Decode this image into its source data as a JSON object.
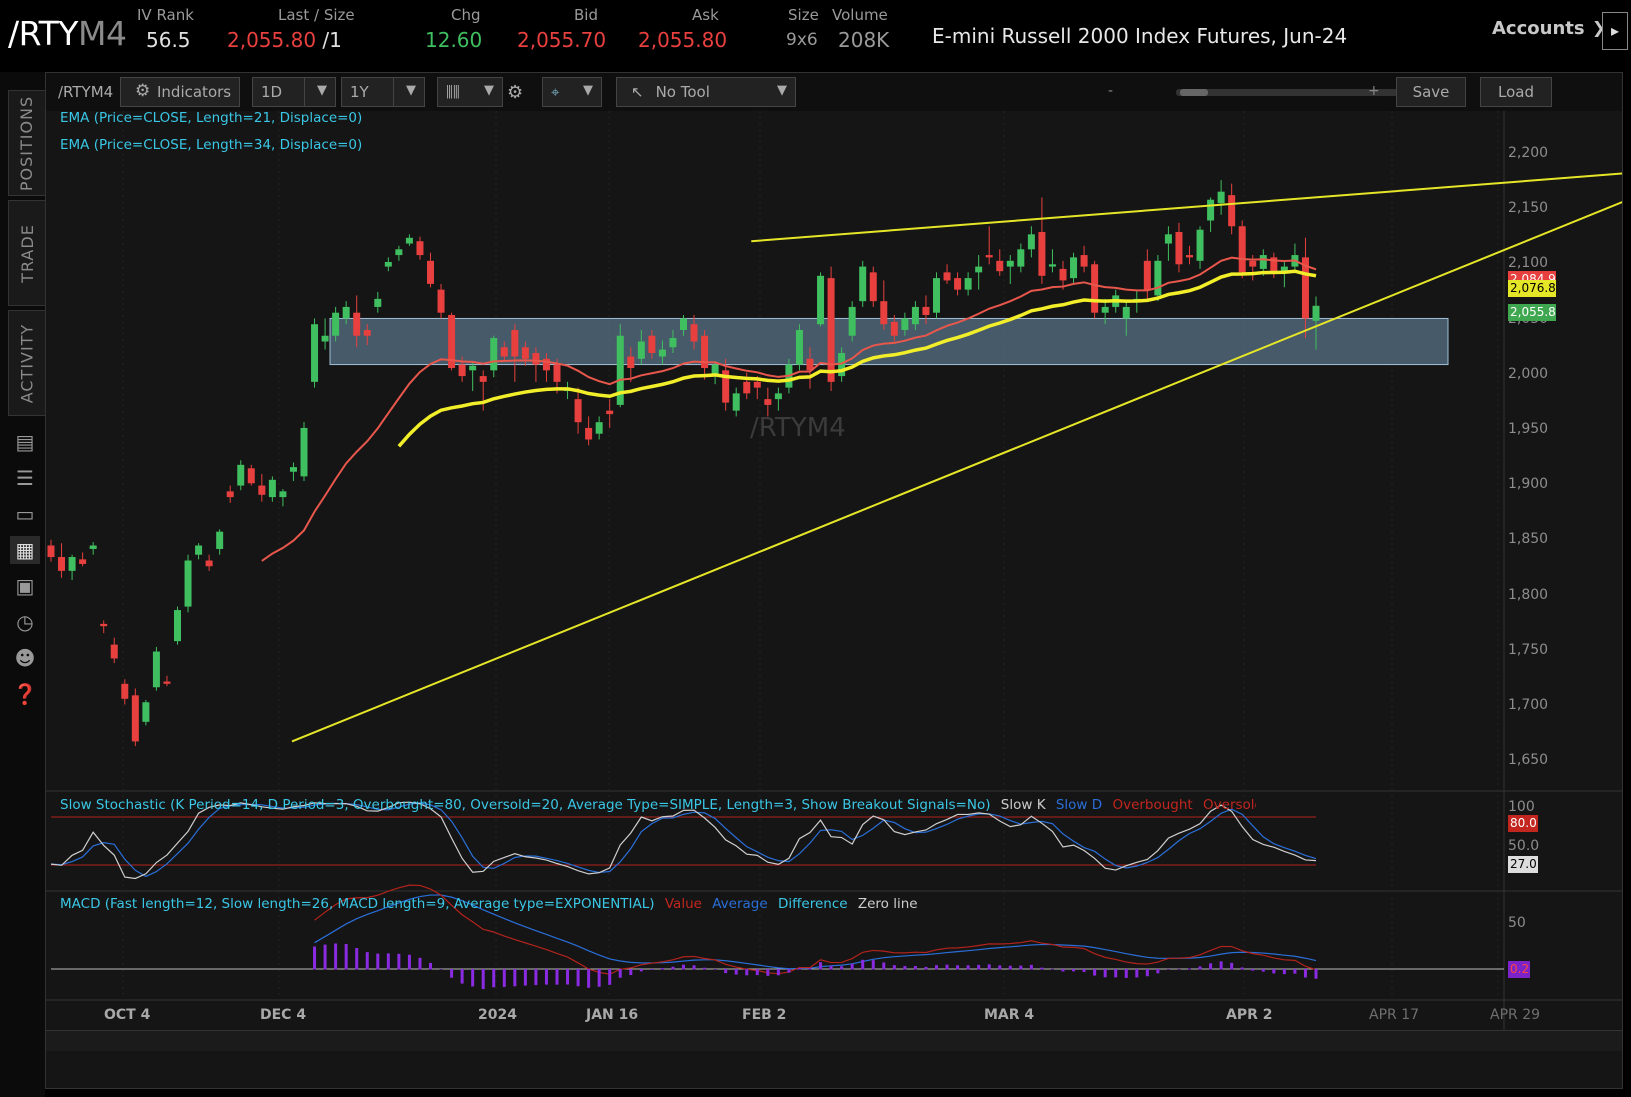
{
  "header": {
    "symbol_main": "/RTY",
    "symbol_suffix": "M4",
    "iv_rank_label": "IV Rank",
    "iv_rank_value": "56.5",
    "last_size_label": "Last / Size",
    "last_value": "2,055.80",
    "size_value": "/1",
    "chg_label": "Chg",
    "chg_value": "12.60",
    "bid_label": "Bid",
    "bid_value": "2,055.70",
    "ask_label": "Ask",
    "ask_value": "2,055.80",
    "size_label": "Size",
    "size_pair": "9x6",
    "volume_label": "Volume",
    "volume_value": "208K",
    "description": "E-mini Russell 2000 Index Futures, Jun-24",
    "accounts_label": "Accounts",
    "colors": {
      "up": "#3fbf5f",
      "down": "#e8403e"
    }
  },
  "sidebar": {
    "tabs": [
      "POSITIONS",
      "TRADE",
      "ACTIVITY"
    ],
    "icons": [
      "news-icon",
      "list-icon",
      "tv-icon",
      "chart-icon",
      "grid-icon",
      "clock-icon",
      "people-icon",
      "help-icon"
    ]
  },
  "toolbar": {
    "symbol": "/RTYM4",
    "indicators_label": "Indicators",
    "aggregation": "1D",
    "range": "1Y",
    "tool": "No Tool",
    "zoom_minus": "-",
    "zoom_plus": "+",
    "save_label": "Save",
    "load_label": "Load"
  },
  "chart_data": {
    "type": "candlestick",
    "watermark": "/RTYM4",
    "studies": {
      "ema21": "EMA (Price=CLOSE, Length=21, Displace=0)",
      "ema34": "EMA (Price=CLOSE, Length=34, Displace=0)",
      "stoch": "Slow Stochastic (K Period=14, D Period=3, Overbought=80, Oversold=20, Average Type=SIMPLE, Length=3, Show Breakout Signals=No)",
      "stoch_legend": [
        "Slow K",
        "Slow D",
        "Overbought",
        "Oversold"
      ],
      "macd": "MACD (Fast length=12, Slow length=26, MACD length=9, Average type=EXPONENTIAL)",
      "macd_legend": [
        "Value",
        "Average",
        "Difference",
        "Zero line"
      ]
    },
    "price_axis": [
      "2,200",
      "2,150",
      "2,100",
      "2,050",
      "2,000",
      "1,950",
      "1,900",
      "1,850",
      "1,800",
      "1,750",
      "1,700",
      "1,650"
    ],
    "ylim": [
      1635,
      2225
    ],
    "price_tags": {
      "ema21": "2,084.9",
      "ema34": "2,076.8",
      "last": "2,055.8"
    },
    "stoch_axis": [
      "100",
      "50.0"
    ],
    "stoch_tags": {
      "overbought": "80.0",
      "value": "27.0"
    },
    "stoch_levels": {
      "overbought": 80,
      "oversold": 20
    },
    "macd_axis": [
      "50"
    ],
    "macd_tags": {
      "value": "0.2"
    },
    "x_labels": [
      "OCT 4",
      "DEC 4",
      "2024",
      "JAN 16",
      "FEB 2",
      "MAR 4",
      "APR 2",
      "APR 17",
      "APR 29"
    ],
    "support_zone": [
      2005,
      2045
    ],
    "trendlines": [
      {
        "from": [
          "2023-10-27",
          1678
        ],
        "to": [
          "2024-04-29",
          2168
        ],
        "color": "#e6e628"
      },
      {
        "from": [
          "2023-12-27",
          2112
        ],
        "to": [
          "2024-04-29",
          2175
        ],
        "color": "#e6e628"
      }
    ],
    "candles": [
      [
        1848,
        1853,
        1834,
        1838
      ],
      [
        1838,
        1850,
        1820,
        1826
      ],
      [
        1826,
        1840,
        1818,
        1838
      ],
      [
        1836,
        1842,
        1830,
        1832
      ],
      [
        1845,
        1851,
        1840,
        1848
      ],
      [
        1780,
        1783,
        1772,
        1778
      ],
      [
        1762,
        1768,
        1746,
        1750
      ],
      [
        1728,
        1732,
        1710,
        1715
      ],
      [
        1718,
        1724,
        1674,
        1678
      ],
      [
        1695,
        1714,
        1692,
        1712
      ],
      [
        1725,
        1760,
        1722,
        1756
      ],
      [
        1730,
        1735,
        1726,
        1728
      ],
      [
        1765,
        1795,
        1762,
        1792
      ],
      [
        1795,
        1840,
        1790,
        1835
      ],
      [
        1840,
        1850,
        1836,
        1848
      ],
      [
        1835,
        1840,
        1826,
        1830
      ],
      [
        1845,
        1862,
        1840,
        1860
      ],
      [
        1895,
        1900,
        1885,
        1890
      ],
      [
        1900,
        1922,
        1896,
        1918
      ],
      [
        1915,
        1918,
        1900,
        1902
      ],
      [
        1900,
        1910,
        1886,
        1892
      ],
      [
        1890,
        1908,
        1886,
        1905
      ],
      [
        1890,
        1897,
        1882,
        1895
      ],
      [
        1912,
        1920,
        1904,
        1916
      ],
      [
        1908,
        1955,
        1904,
        1950
      ],
      [
        1990,
        2045,
        1985,
        2040
      ],
      [
        2025,
        2045,
        2018,
        2030
      ],
      [
        2030,
        2055,
        2025,
        2050
      ],
      [
        2045,
        2060,
        2040,
        2055
      ],
      [
        2050,
        2065,
        2020,
        2030
      ],
      [
        2035,
        2040,
        2022,
        2030
      ],
      [
        2055,
        2068,
        2050,
        2062
      ],
      [
        2090,
        2098,
        2086,
        2094
      ],
      [
        2100,
        2108,
        2095,
        2105
      ],
      [
        2110,
        2118,
        2108,
        2115
      ],
      [
        2112,
        2116,
        2096,
        2100
      ],
      [
        2095,
        2102,
        2072,
        2075
      ],
      [
        2070,
        2075,
        2045,
        2050
      ],
      [
        2048,
        2050,
        2000,
        2002
      ],
      [
        2005,
        2012,
        1990,
        1995
      ],
      [
        2000,
        2008,
        1982,
        2004
      ],
      [
        1995,
        2000,
        1965,
        1990
      ],
      [
        2000,
        2030,
        1994,
        2028
      ],
      [
        2020,
        2025,
        2008,
        2012
      ],
      [
        2035,
        2040,
        1990,
        2012
      ],
      [
        2020,
        2025,
        2004,
        2010
      ],
      [
        2015,
        2020,
        1990,
        2005
      ],
      [
        2010,
        2015,
        1990,
        2000
      ],
      [
        2005,
        2010,
        1980,
        1990
      ],
      [
        1982,
        1990,
        1975,
        1985
      ],
      [
        1975,
        1985,
        1945,
        1955
      ],
      [
        1950,
        1960,
        1935,
        1940
      ],
      [
        1945,
        1960,
        1940,
        1955
      ],
      [
        1965,
        1975,
        1950,
        1962
      ],
      [
        1970,
        2040,
        1968,
        2030
      ],
      [
        2012,
        2020,
        1990,
        2002
      ],
      [
        2010,
        2035,
        2005,
        2025
      ],
      [
        2030,
        2035,
        2010,
        2015
      ],
      [
        2012,
        2026,
        2005,
        2018
      ],
      [
        2020,
        2035,
        2015,
        2028
      ],
      [
        2035,
        2048,
        2030,
        2045
      ],
      [
        2040,
        2048,
        2018,
        2025
      ],
      [
        2030,
        2035,
        1992,
        2002
      ],
      [
        1995,
        2008,
        1988,
        2005
      ],
      [
        2000,
        2010,
        1965,
        1972
      ],
      [
        1965,
        1985,
        1960,
        1980
      ],
      [
        1990,
        1998,
        1975,
        1980
      ],
      [
        1990,
        1995,
        1975,
        1985
      ],
      [
        1975,
        1985,
        1960,
        1970
      ],
      [
        1975,
        1985,
        1965,
        1980
      ],
      [
        1985,
        2010,
        1980,
        2005
      ],
      [
        2005,
        2040,
        2000,
        2035
      ],
      [
        2010,
        2020,
        1984,
        2000
      ],
      [
        2040,
        2085,
        2038,
        2082
      ],
      [
        2080,
        2090,
        1982,
        1990
      ],
      [
        1995,
        2020,
        1990,
        2015
      ],
      [
        2030,
        2060,
        2025,
        2055
      ],
      [
        2060,
        2095,
        2055,
        2090
      ],
      [
        2085,
        2090,
        2055,
        2060
      ],
      [
        2060,
        2078,
        2035,
        2040
      ],
      [
        2042,
        2048,
        2025,
        2030
      ],
      [
        2035,
        2050,
        2030,
        2045
      ],
      [
        2040,
        2060,
        2035,
        2055
      ],
      [
        2055,
        2065,
        2040,
        2048
      ],
      [
        2050,
        2085,
        2045,
        2080
      ],
      [
        2085,
        2092,
        2075,
        2078
      ],
      [
        2080,
        2085,
        2065,
        2070
      ],
      [
        2070,
        2085,
        2065,
        2080
      ],
      [
        2085,
        2100,
        2070,
        2090
      ],
      [
        2100,
        2125,
        2092,
        2098
      ],
      [
        2095,
        2105,
        2082,
        2086
      ],
      [
        2090,
        2100,
        2075,
        2095
      ],
      [
        2090,
        2110,
        2085,
        2105
      ],
      [
        2105,
        2125,
        2098,
        2118
      ],
      [
        2120,
        2150,
        2075,
        2082
      ],
      [
        2090,
        2105,
        2085,
        2092
      ],
      [
        2088,
        2095,
        2070,
        2078
      ],
      [
        2080,
        2102,
        2075,
        2098
      ],
      [
        2100,
        2108,
        2085,
        2090
      ],
      [
        2092,
        2095,
        2045,
        2050
      ],
      [
        2050,
        2062,
        2040,
        2055
      ],
      [
        2055,
        2070,
        2050,
        2065
      ],
      [
        2045,
        2060,
        2030,
        2055
      ],
      [
        2060,
        2070,
        2050,
        2062
      ],
      [
        2095,
        2105,
        2060,
        2070
      ],
      [
        2065,
        2100,
        2060,
        2095
      ],
      [
        2110,
        2125,
        2095,
        2118
      ],
      [
        2120,
        2128,
        2085,
        2092
      ],
      [
        2100,
        2108,
        2092,
        2098
      ],
      [
        2095,
        2125,
        2088,
        2122
      ],
      [
        2130,
        2150,
        2120,
        2148
      ],
      [
        2145,
        2165,
        2135,
        2155
      ],
      [
        2152,
        2162,
        2118,
        2125
      ],
      [
        2125,
        2130,
        2080,
        2085
      ],
      [
        2095,
        2100,
        2078,
        2090
      ],
      [
        2088,
        2105,
        2082,
        2100
      ],
      [
        2098,
        2102,
        2080,
        2085
      ],
      [
        2085,
        2095,
        2072,
        2090
      ],
      [
        2090,
        2110,
        2085,
        2100
      ],
      [
        2098,
        2115,
        2028,
        2045
      ],
      [
        2043,
        2064,
        2018,
        2056
      ]
    ]
  }
}
